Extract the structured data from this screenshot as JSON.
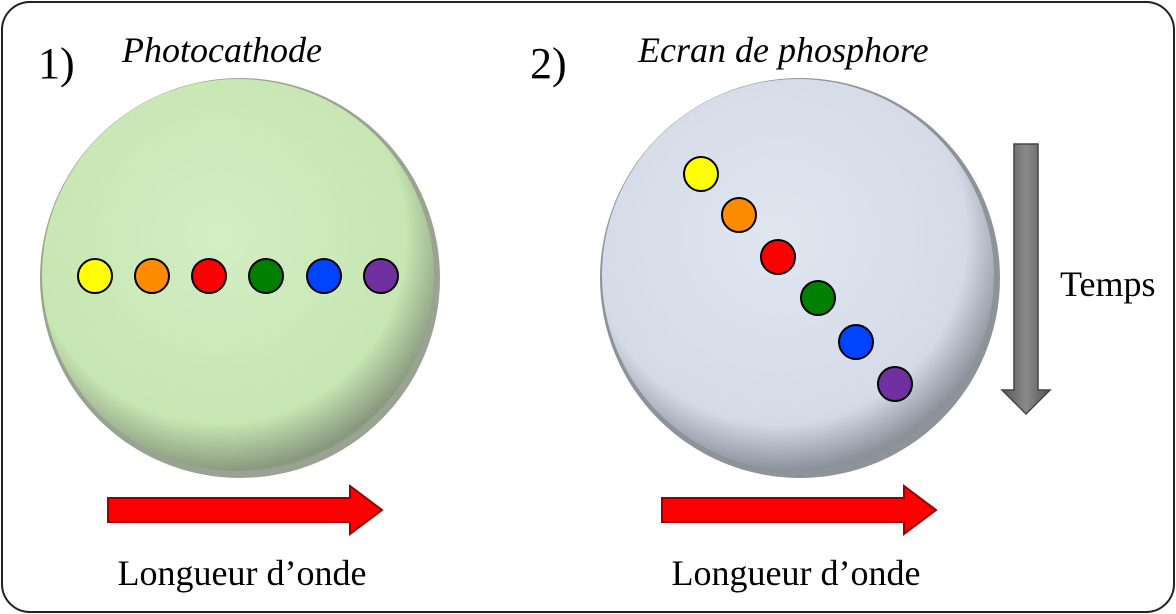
{
  "panels": [
    {
      "number": "1)",
      "title": "Photocathode",
      "axis_label": "Longueur d’onde"
    },
    {
      "number": "2)",
      "title": "Ecran de phosphore",
      "axis_label": "Longueur d’onde"
    }
  ],
  "time_label": "Temps"
}
